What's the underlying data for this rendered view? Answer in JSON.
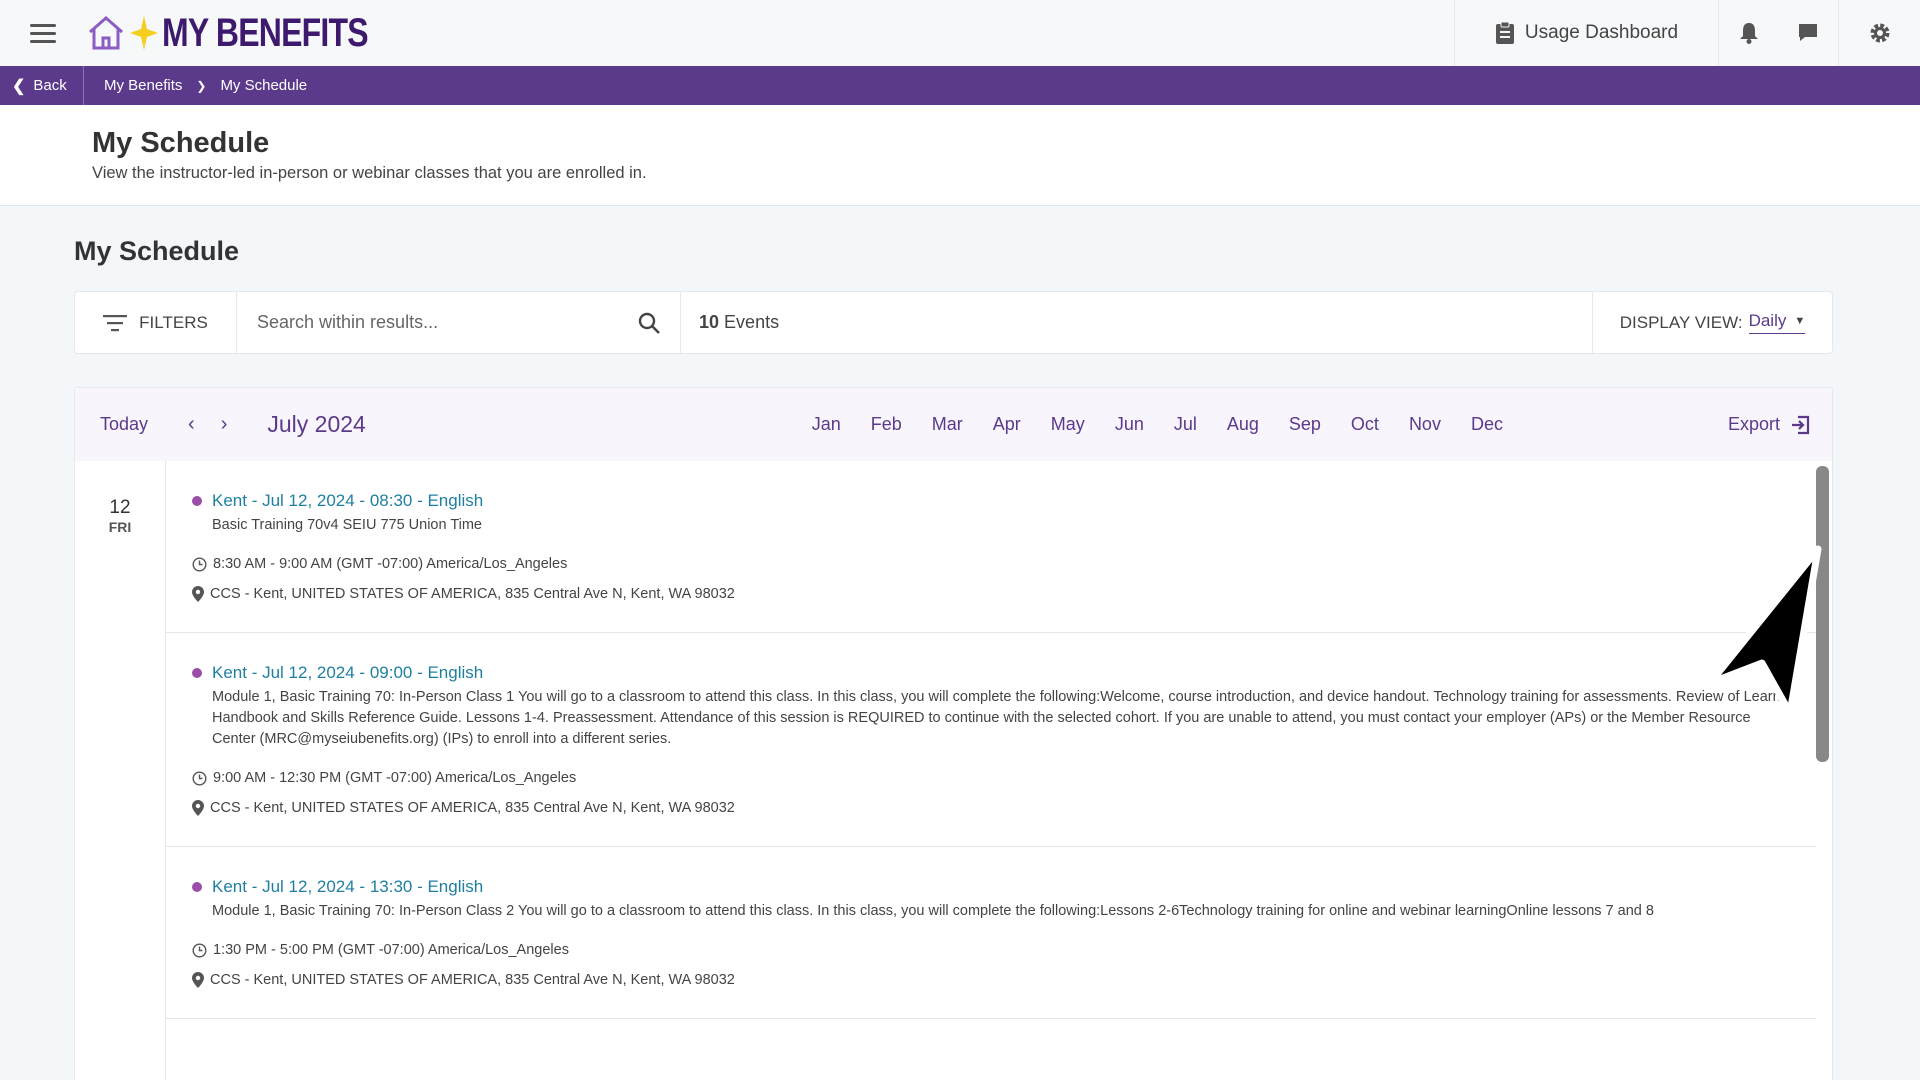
{
  "header": {
    "logo_text": "MY BENEFITS",
    "usage_dashboard": "Usage Dashboard",
    "icons": [
      "menu-icon",
      "home-icon",
      "clipboard-icon",
      "bell-icon",
      "chat-icon",
      "gear-icon"
    ]
  },
  "breadcrumb": {
    "back": "Back",
    "items": [
      "My Benefits",
      "My Schedule"
    ]
  },
  "page": {
    "title": "My Schedule",
    "subtitle": "View the instructor-led in-person or webinar classes that you are enrolled in."
  },
  "section_title": "My Schedule",
  "toolbar": {
    "filters": "FILTERS",
    "search_placeholder": "Search within results...",
    "count_number": "10",
    "count_label": "Events",
    "display_view_label": "DISPLAY VIEW:",
    "display_view_value": "Daily"
  },
  "calendar": {
    "today": "Today",
    "month": "July 2024",
    "months": [
      "Jan",
      "Feb",
      "Mar",
      "Apr",
      "May",
      "Jun",
      "Jul",
      "Aug",
      "Sep",
      "Oct",
      "Nov",
      "Dec"
    ],
    "export": "Export",
    "day_number": "12",
    "day_name": "FRI",
    "accent": "#5b3a8c"
  },
  "events": [
    {
      "title": "Kent - Jul 12, 2024 - 08:30 - English",
      "description": "Basic Training 70v4 SEIU 775 Union Time",
      "time": "8:30 AM - 9:00 AM (GMT -07:00) America/Los_Angeles",
      "location": "CCS - Kent, UNITED STATES OF AMERICA, 835 Central Ave N, Kent, WA 98032"
    },
    {
      "title": "Kent - Jul 12, 2024 - 09:00 - English",
      "description": "Module 1, Basic Training 70: In-Person Class 1 You will go to a classroom to attend this class. In this class, you will complete the following:Welcome, course introduction, and device handout.  Technology training for assessments. Review of Learner Handbook and Skills Reference Guide.  Lessons 1-4.  Preassessment.  Attendance of this session is REQUIRED to continue with the selected cohort.  If you are unable to attend, you must contact your employer (APs) or the Member Resource Center (MRC@myseiubenefits.org) (IPs) to enroll into a different series.",
      "time": "9:00 AM - 12:30 PM (GMT -07:00) America/Los_Angeles",
      "location": "CCS - Kent, UNITED STATES OF AMERICA, 835 Central Ave N, Kent, WA 98032"
    },
    {
      "title": "Kent - Jul 12, 2024 - 13:30 - English",
      "description": "Module 1, Basic Training 70: In-Person Class 2     You will go to a classroom to attend this class. In this class, you will complete the following:Lessons 2-6Technology training for online and webinar learningOnline lessons 7 and 8",
      "time": "1:30 PM - 5:00 PM (GMT -07:00) America/Los_Angeles",
      "location": "CCS - Kent, UNITED STATES OF AMERICA, 835 Central Ave N, Kent, WA 98032"
    }
  ]
}
